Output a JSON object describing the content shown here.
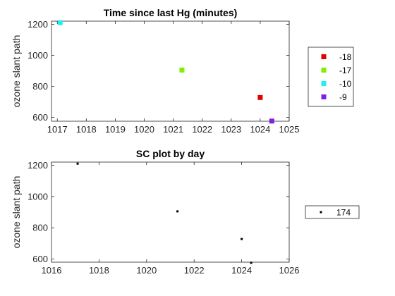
{
  "chart_data": [
    {
      "type": "scatter",
      "title": "Time since last Hg (minutes)",
      "xlabel": "",
      "ylabel": "ozone slant path",
      "xlim": [
        1016.8,
        1025
      ],
      "ylim": [
        575,
        1220
      ],
      "xticks": [
        1017,
        1018,
        1019,
        1020,
        1021,
        1022,
        1023,
        1024,
        1025
      ],
      "yticks": [
        600,
        800,
        1000,
        1200
      ],
      "grid": false,
      "legend_position": "right",
      "series": [
        {
          "name": "-18",
          "color": "#e00000",
          "points": [
            [
              1024.0,
              728
            ]
          ]
        },
        {
          "name": "-17",
          "color": "#80f000",
          "points": [
            [
              1021.3,
              905
            ]
          ]
        },
        {
          "name": "-10",
          "color": "#20f0f0",
          "points": [
            [
              1017.1,
              1210
            ]
          ]
        },
        {
          "name": "-9",
          "color": "#8020e0",
          "points": [
            [
              1024.4,
              576
            ]
          ]
        }
      ]
    },
    {
      "type": "scatter",
      "title": "SC plot by day",
      "xlabel": "",
      "ylabel": "ozone slant path",
      "xlim": [
        1016,
        1026
      ],
      "ylim": [
        580,
        1220
      ],
      "xticks": [
        1016,
        1018,
        1020,
        1022,
        1024,
        1026
      ],
      "yticks": [
        600,
        800,
        1000,
        1200
      ],
      "grid": false,
      "legend_position": "right",
      "series": [
        {
          "name": "174",
          "color": "#000000",
          "points": [
            [
              1017.1,
              1210
            ],
            [
              1021.3,
              905
            ],
            [
              1024.0,
              728
            ],
            [
              1024.4,
              576
            ]
          ]
        }
      ]
    }
  ]
}
